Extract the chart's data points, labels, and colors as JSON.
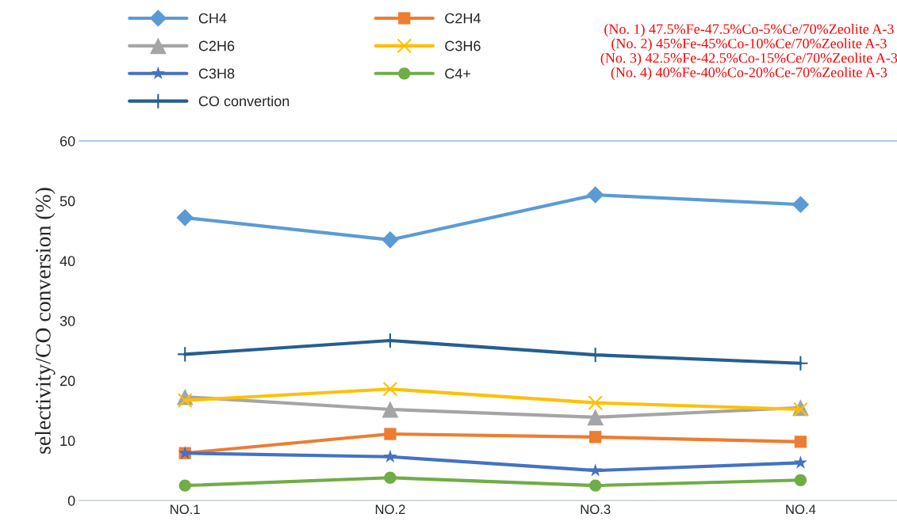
{
  "chart_data": {
    "type": "line",
    "ylabel": "selectivity/CO conversion (%)",
    "categories": [
      "NO.1",
      "NO.2",
      "NO.3",
      "NO.4"
    ],
    "series": [
      {
        "name": "CH4",
        "color": "#5b9bd5",
        "marker": "diamond",
        "values": [
          47.2,
          43.5,
          51.0,
          49.4
        ]
      },
      {
        "name": "C2H4",
        "color": "#ed7d31",
        "marker": "square",
        "values": [
          7.9,
          11.1,
          10.6,
          9.8
        ]
      },
      {
        "name": "C2H6",
        "color": "#a5a5a5",
        "marker": "triangle",
        "values": [
          17.3,
          15.2,
          13.9,
          15.5
        ]
      },
      {
        "name": "C3H6",
        "color": "#ffc000",
        "marker": "cross",
        "values": [
          16.7,
          18.6,
          16.3,
          15.2
        ]
      },
      {
        "name": "C3H8",
        "color": "#4472c4",
        "marker": "star",
        "values": [
          7.9,
          7.3,
          5.0,
          6.3
        ]
      },
      {
        "name": "C4+",
        "color": "#70ad47",
        "marker": "circle",
        "values": [
          2.5,
          3.8,
          2.5,
          3.4
        ]
      },
      {
        "name": "CO convertion",
        "color": "#255e91",
        "marker": "plus",
        "values": [
          24.4,
          26.7,
          24.3,
          22.9
        ]
      }
    ],
    "ylim": [
      0,
      60
    ],
    "yticks": [
      0,
      10,
      20,
      30,
      40,
      50,
      60
    ],
    "grid": false,
    "legend": "top left",
    "annotations": [
      "(No. 1) 47.5%Fe-47.5%Co-5%Ce/70%Zeolite A-3",
      "(No. 2) 45%Fe-45%Co-10%Ce/70%Zeolite A-3",
      "(No. 3) 42.5%Fe-42.5%Co-15%Ce/70%Zeolite A-3",
      "(No. 4) 40%Fe-40%Co-20%Ce-70%Zeolite A-3"
    ]
  }
}
